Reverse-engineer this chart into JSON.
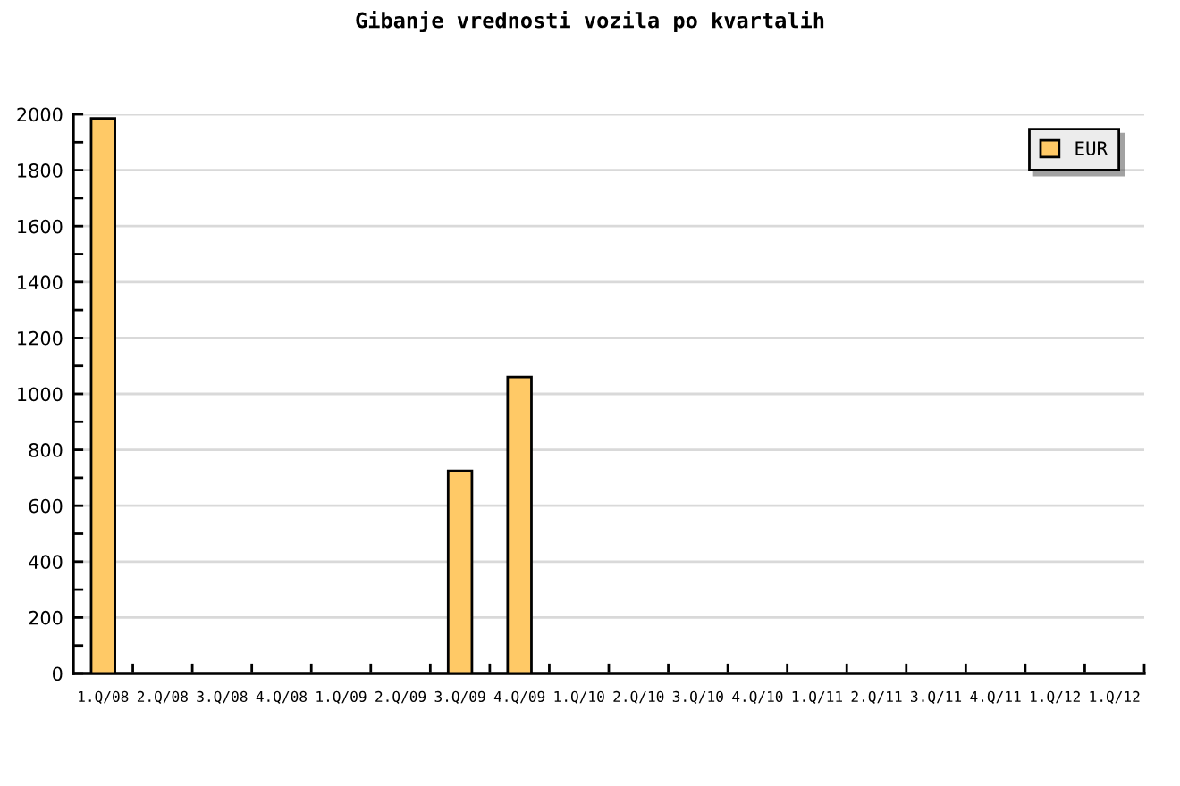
{
  "chart_data": {
    "type": "bar",
    "title": "Gibanje vrednosti vozila po kvartalih",
    "categories": [
      "1.Q/08",
      "2.Q/08",
      "3.Q/08",
      "4.Q/08",
      "1.Q/09",
      "2.Q/09",
      "3.Q/09",
      "4.Q/09",
      "1.Q/10",
      "2.Q/10",
      "3.Q/10",
      "4.Q/10",
      "1.Q/11",
      "2.Q/11",
      "3.Q/11",
      "4.Q/11",
      "1.Q/12",
      "1.Q/12"
    ],
    "series": [
      {
        "name": "EUR",
        "color": "#ffc966",
        "values": [
          1985,
          null,
          null,
          null,
          null,
          null,
          725,
          1060,
          null,
          null,
          null,
          null,
          null,
          null,
          null,
          null,
          null,
          null
        ]
      }
    ],
    "ylim": [
      0,
      2000
    ],
    "yticks": [
      0,
      200,
      400,
      600,
      800,
      1000,
      1200,
      1400,
      1600,
      1800,
      2000
    ],
    "grid": "y",
    "legend": "top right"
  }
}
